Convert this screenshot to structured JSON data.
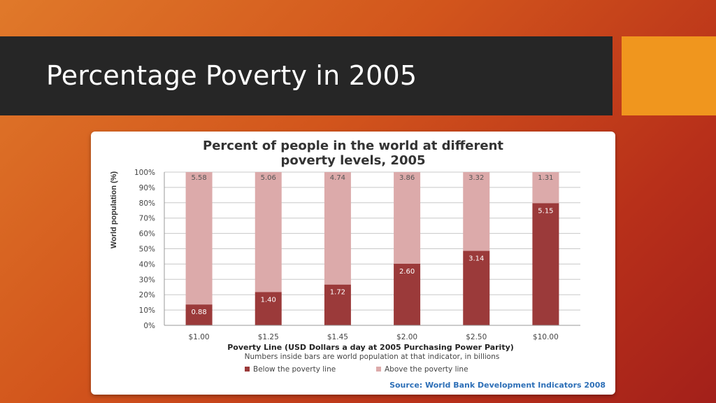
{
  "slide": {
    "title": "Percentage Poverty in 2005"
  },
  "colors": {
    "below": "#9b3a3a",
    "above": "#dcaaaa",
    "grid": "#c8c8c8",
    "source": "#2d6fb7",
    "title_band": "#262626",
    "accent": "#f0961e"
  },
  "chart_data": {
    "type": "bar",
    "stacked": true,
    "title_line1": "Percent of people in the world at different",
    "title_line2": "poverty levels, 2005",
    "ylabel": "World population (%)",
    "xlabel": "Poverty Line (USD Dollars a day at 2005 Purchasing Power Parity)",
    "note": "Numbers inside bars are world population at that indicator, in billions",
    "source": "Source: World Bank Development Indicators 2008",
    "ylim": [
      0,
      100
    ],
    "yticks": [
      "0%",
      "10%",
      "20%",
      "30%",
      "40%",
      "50%",
      "60%",
      "70%",
      "80%",
      "90%",
      "100%"
    ],
    "grid": true,
    "legend_position": "bottom",
    "categories": [
      "$1.00",
      "$1.25",
      "$1.45",
      "$2.00",
      "$2.50",
      "$10.00"
    ],
    "series": [
      {
        "name": "Below the poverty line",
        "values": [
          13.6,
          21.7,
          26.6,
          40.2,
          48.6,
          79.7
        ],
        "labels": [
          "0.88",
          "1.40",
          "1.72",
          "2.60",
          "3.14",
          "5.15"
        ]
      },
      {
        "name": "Above the poverty line",
        "values": [
          86.4,
          78.3,
          73.4,
          59.8,
          51.4,
          20.3
        ],
        "labels": [
          "5.58",
          "5.06",
          "4.74",
          "3.86",
          "3.32",
          "1.31"
        ]
      }
    ]
  }
}
